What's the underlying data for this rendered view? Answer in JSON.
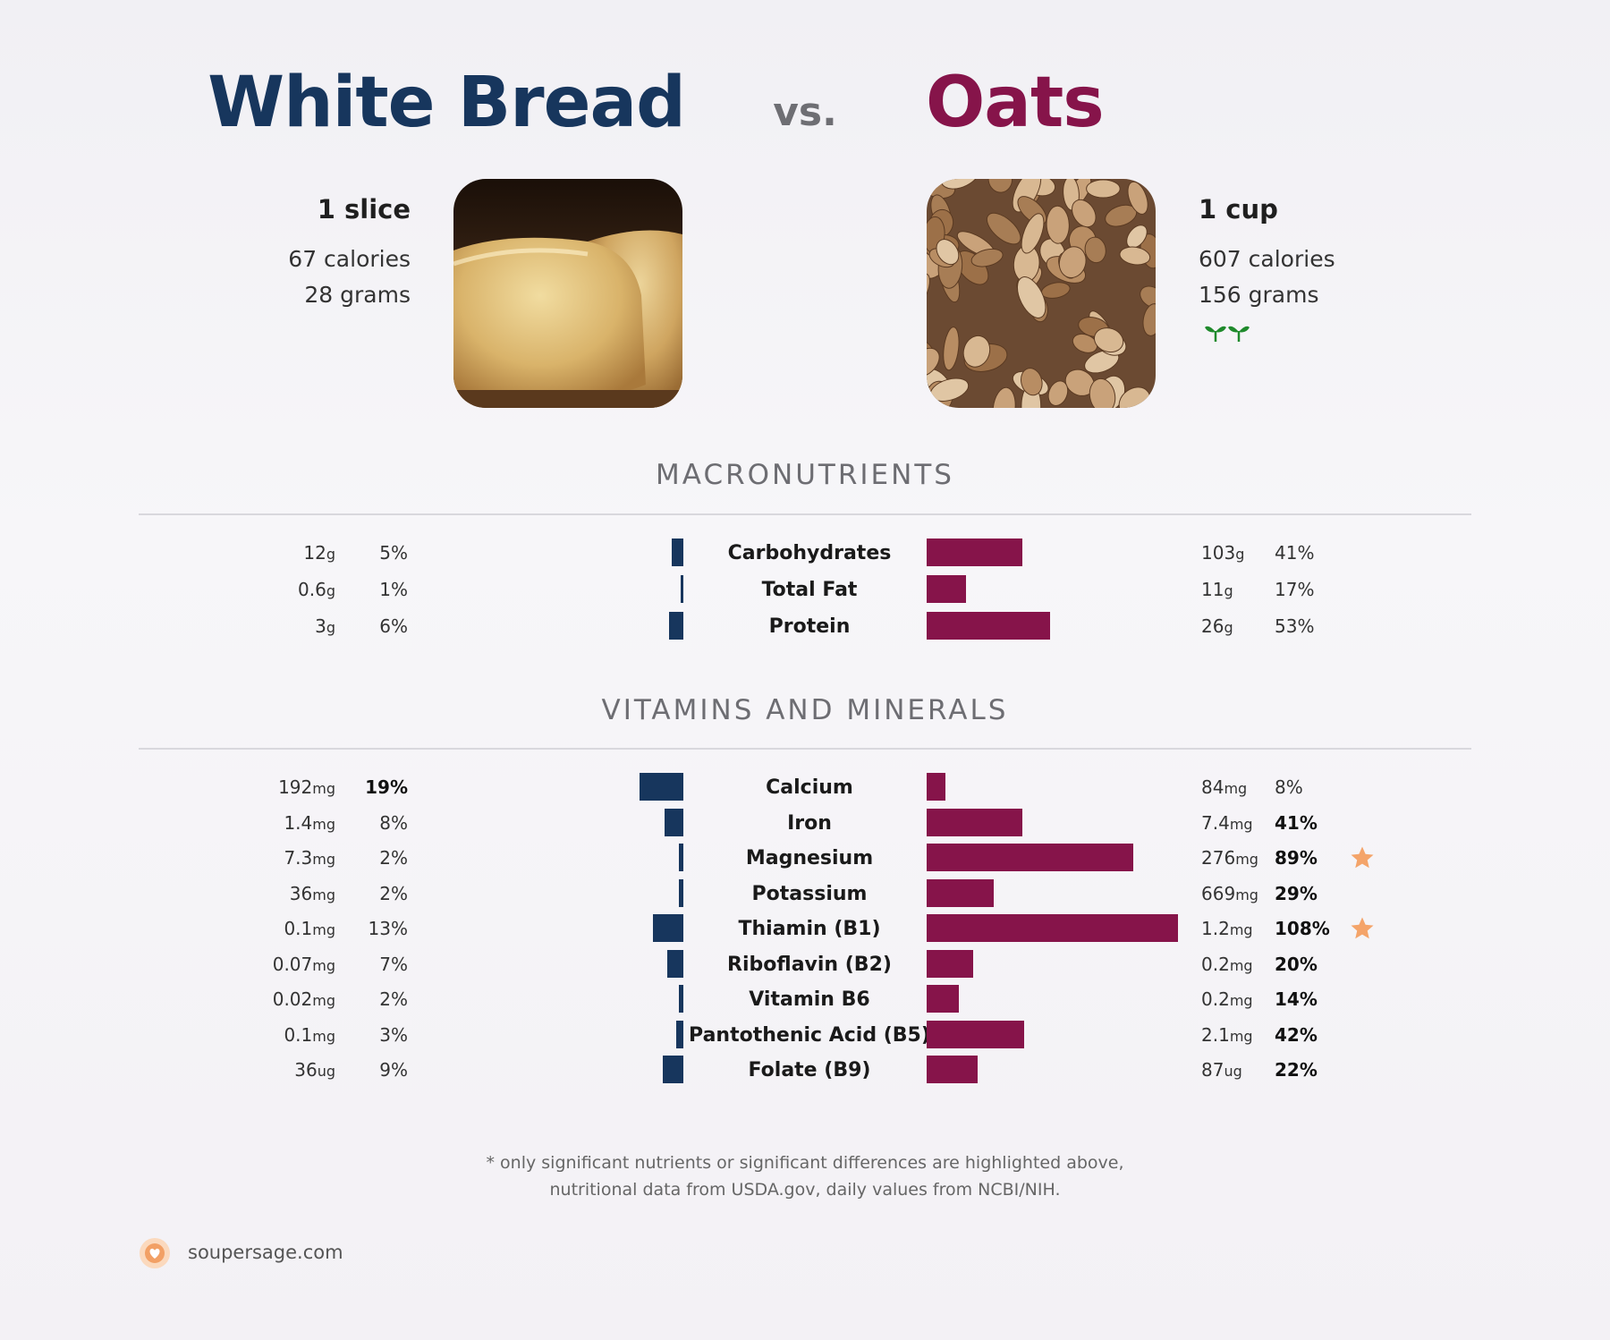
{
  "left_food": {
    "name": "White Bread",
    "serving": "1 slice",
    "calories": "67 calories",
    "grams": "28 grams",
    "color": "#17365d"
  },
  "vs_label": "vs.",
  "right_food": {
    "name": "Oats",
    "serving": "1 cup",
    "calories": "607 calories",
    "grams": "156 grams",
    "color": "#86144a",
    "badge_icon": "sprout-icon"
  },
  "sections": {
    "macro": "MACRONUTRIENTS",
    "vitamins": "VITAMINS AND MINERALS"
  },
  "chart_data": [
    {
      "type": "bar",
      "title": "MACRONUTRIENTS",
      "series": [
        {
          "name": "White Bread"
        },
        {
          "name": "Oats"
        }
      ],
      "rows": [
        {
          "name": "Carbohydrates",
          "left_amount": "12",
          "left_unit": "g",
          "left_pct": 5,
          "left_bold": false,
          "right_amount": "103",
          "right_unit": "g",
          "right_pct": 41,
          "right_bold": false,
          "star": false
        },
        {
          "name": "Total Fat",
          "left_amount": "0.6",
          "left_unit": "g",
          "left_pct": 1,
          "left_bold": false,
          "right_amount": "11",
          "right_unit": "g",
          "right_pct": 17,
          "right_bold": false,
          "star": false
        },
        {
          "name": "Protein",
          "left_amount": "3",
          "left_unit": "g",
          "left_pct": 6,
          "left_bold": false,
          "right_amount": "26",
          "right_unit": "g",
          "right_pct": 53,
          "right_bold": false,
          "star": false
        }
      ]
    },
    {
      "type": "bar",
      "title": "VITAMINS AND MINERALS",
      "series": [
        {
          "name": "White Bread"
        },
        {
          "name": "Oats"
        }
      ],
      "rows": [
        {
          "name": "Calcium",
          "left_amount": "192",
          "left_unit": "mg",
          "left_pct": 19,
          "left_bold": true,
          "right_amount": "84",
          "right_unit": "mg",
          "right_pct": 8,
          "right_bold": false,
          "star": false
        },
        {
          "name": "Iron",
          "left_amount": "1.4",
          "left_unit": "mg",
          "left_pct": 8,
          "left_bold": false,
          "right_amount": "7.4",
          "right_unit": "mg",
          "right_pct": 41,
          "right_bold": true,
          "star": false
        },
        {
          "name": "Magnesium",
          "left_amount": "7.3",
          "left_unit": "mg",
          "left_pct": 2,
          "left_bold": false,
          "right_amount": "276",
          "right_unit": "mg",
          "right_pct": 89,
          "right_bold": true,
          "star": true
        },
        {
          "name": "Potassium",
          "left_amount": "36",
          "left_unit": "mg",
          "left_pct": 2,
          "left_bold": false,
          "right_amount": "669",
          "right_unit": "mg",
          "right_pct": 29,
          "right_bold": true,
          "star": false
        },
        {
          "name": "Thiamin (B1)",
          "left_amount": "0.1",
          "left_unit": "mg",
          "left_pct": 13,
          "left_bold": false,
          "right_amount": "1.2",
          "right_unit": "mg",
          "right_pct": 108,
          "right_bold": true,
          "star": true
        },
        {
          "name": "Riboflavin (B2)",
          "left_amount": "0.07",
          "left_unit": "mg",
          "left_pct": 7,
          "left_bold": false,
          "right_amount": "0.2",
          "right_unit": "mg",
          "right_pct": 20,
          "right_bold": true,
          "star": false
        },
        {
          "name": "Vitamin B6",
          "left_amount": "0.02",
          "left_unit": "mg",
          "left_pct": 2,
          "left_bold": false,
          "right_amount": "0.2",
          "right_unit": "mg",
          "right_pct": 14,
          "right_bold": true,
          "star": false
        },
        {
          "name": "Pantothenic Acid (B5)",
          "left_amount": "0.1",
          "left_unit": "mg",
          "left_pct": 3,
          "left_bold": false,
          "right_amount": "2.1",
          "right_unit": "mg",
          "right_pct": 42,
          "right_bold": true,
          "star": false
        },
        {
          "name": "Folate (B9)",
          "left_amount": "36",
          "left_unit": "ug",
          "left_pct": 9,
          "left_bold": false,
          "right_amount": "87",
          "right_unit": "ug",
          "right_pct": 22,
          "right_bold": true,
          "star": false
        }
      ]
    }
  ],
  "footnote": {
    "line1": "* only significant nutrients or significant differences are highlighted above,",
    "line2": "nutritional data from USDA.gov, daily values from NCBI/NIH."
  },
  "brand": {
    "site": "soupersage.com",
    "logo_icon": "soupersage-logo-icon",
    "star_color": "#f4a46a"
  }
}
